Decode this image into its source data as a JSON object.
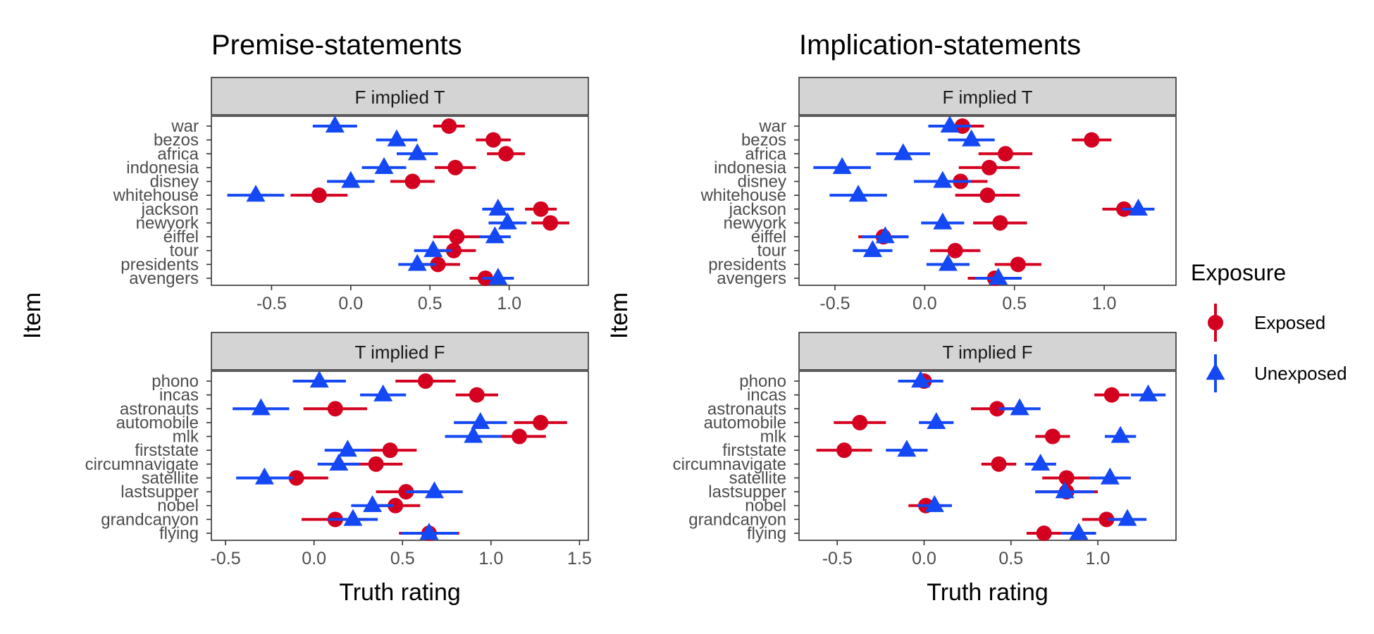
{
  "legend": {
    "title": "Exposure",
    "entries": [
      {
        "name": "Exposed",
        "color": "#d4001f",
        "shape": "circle"
      },
      {
        "name": "Unexposed",
        "color": "#1448f5",
        "shape": "triangle"
      }
    ]
  },
  "chart_data": [
    {
      "type": "scatter",
      "title": "Premise-statements",
      "ylabel": "Item",
      "xlabel": "",
      "xlim": [
        -0.88,
        1.5
      ],
      "xticks": [
        -0.5,
        0.0,
        0.5,
        1.0
      ],
      "xtick_labels": [
        "-0.5",
        "0.0",
        "0.5",
        "1.0"
      ],
      "facet": "F implied T",
      "items": [
        "war",
        "bezos",
        "africa",
        "indonesia",
        "disney",
        "whitehouse",
        "jackson",
        "newyork",
        "eiffel",
        "tour",
        "presidents",
        "avengers"
      ],
      "series": [
        {
          "name": "Exposed",
          "values": [
            0.62,
            0.9,
            0.98,
            0.66,
            0.39,
            -0.2,
            1.2,
            1.26,
            0.67,
            0.65,
            0.55,
            0.85
          ],
          "err": [
            0.1,
            0.11,
            0.12,
            0.13,
            0.14,
            0.18,
            0.1,
            0.12,
            0.15,
            0.14,
            0.14,
            0.1
          ]
        },
        {
          "name": "Unexposed",
          "values": [
            -0.1,
            0.29,
            0.42,
            0.21,
            0.0,
            -0.6,
            0.93,
            0.99,
            0.91,
            0.52,
            0.42,
            0.93
          ],
          "err": [
            0.14,
            0.13,
            0.13,
            0.14,
            0.15,
            0.18,
            0.1,
            0.12,
            0.1,
            0.12,
            0.12,
            0.1
          ]
        }
      ]
    },
    {
      "type": "scatter",
      "title": "",
      "ylabel": "Item",
      "xlabel": "Truth rating",
      "xlim": [
        -0.58,
        1.55
      ],
      "xticks": [
        -0.5,
        0.0,
        0.5,
        1.0,
        1.5
      ],
      "xtick_labels": [
        "-0.5",
        "0.0",
        "0.5",
        "1.0",
        "1.5"
      ],
      "facet": "T implied F",
      "items": [
        "phono",
        "incas",
        "astronauts",
        "automobile",
        "mlk",
        "firststate",
        "circumnavigate",
        "satellite",
        "lastsupper",
        "nobel",
        "grandcanyon",
        "flying"
      ],
      "series": [
        {
          "name": "Exposed",
          "values": [
            0.63,
            0.92,
            0.12,
            1.28,
            1.16,
            0.43,
            0.35,
            -0.1,
            0.52,
            0.46,
            0.12,
            0.65
          ],
          "err": [
            0.17,
            0.12,
            0.18,
            0.15,
            0.15,
            0.15,
            0.15,
            0.18,
            0.17,
            0.14,
            0.19,
            0.17
          ]
        },
        {
          "name": "Unexposed",
          "values": [
            0.03,
            0.39,
            -0.3,
            0.94,
            0.9,
            0.19,
            0.14,
            -0.28,
            0.68,
            0.33,
            0.22,
            0.65
          ],
          "err": [
            0.15,
            0.13,
            0.16,
            0.15,
            0.16,
            0.13,
            0.12,
            0.16,
            0.16,
            0.12,
            0.14,
            0.16
          ]
        }
      ]
    },
    {
      "type": "scatter",
      "title": "Implication-statements",
      "ylabel": "Item",
      "xlabel": "",
      "xlim": [
        -0.7,
        1.4
      ],
      "xticks": [
        -0.5,
        0.0,
        0.5,
        1.0
      ],
      "xtick_labels": [
        "-0.5",
        "0.0",
        "0.5",
        "1.0"
      ],
      "facet": "F implied T",
      "items": [
        "war",
        "bezos",
        "africa",
        "indonesia",
        "disney",
        "whitehouse",
        "jackson",
        "newyork",
        "eiffel",
        "tour",
        "presidents",
        "avengers"
      ],
      "series": [
        {
          "name": "Exposed",
          "values": [
            0.21,
            0.93,
            0.45,
            0.36,
            0.2,
            0.35,
            1.11,
            0.42,
            -0.23,
            0.17,
            0.52,
            0.39
          ],
          "err": [
            0.12,
            0.11,
            0.15,
            0.17,
            0.15,
            0.18,
            0.12,
            0.15,
            0.14,
            0.14,
            0.13,
            0.15
          ]
        },
        {
          "name": "Unexposed",
          "values": [
            0.14,
            0.26,
            -0.12,
            -0.46,
            0.1,
            -0.37,
            1.19,
            0.1,
            -0.22,
            -0.29,
            0.13,
            0.41
          ],
          "err": [
            0.12,
            0.13,
            0.15,
            0.16,
            0.16,
            0.16,
            0.09,
            0.12,
            0.13,
            0.11,
            0.12,
            0.13
          ]
        }
      ]
    },
    {
      "type": "scatter",
      "title": "",
      "ylabel": "Item",
      "xlabel": "Truth rating",
      "xlim": [
        -0.72,
        1.45
      ],
      "xticks": [
        -0.5,
        0.0,
        0.5,
        1.0
      ],
      "xtick_labels": [
        "-0.5",
        "0.0",
        "0.5",
        "1.0"
      ],
      "facet": "T implied F",
      "items": [
        "phono",
        "incas",
        "astronauts",
        "automobile",
        "mlk",
        "firststate",
        "circumnavigate",
        "satellite",
        "lastsupper",
        "nobel",
        "grandcanyon",
        "flying"
      ],
      "series": [
        {
          "name": "Exposed",
          "values": [
            0.0,
            1.08,
            0.42,
            -0.37,
            0.74,
            -0.46,
            0.43,
            0.82,
            0.82,
            0.01,
            1.05,
            0.69
          ],
          "err": [
            0.1,
            0.1,
            0.15,
            0.15,
            0.1,
            0.16,
            0.1,
            0.14,
            0.18,
            0.1,
            0.14,
            0.1
          ]
        },
        {
          "name": "Unexposed",
          "values": [
            -0.02,
            1.29,
            0.55,
            0.07,
            1.13,
            -0.1,
            0.67,
            1.07,
            0.81,
            0.06,
            1.17,
            0.89
          ],
          "err": [
            0.13,
            0.1,
            0.12,
            0.1,
            0.09,
            0.12,
            0.09,
            0.12,
            0.17,
            0.1,
            0.11,
            0.1
          ]
        }
      ]
    }
  ]
}
